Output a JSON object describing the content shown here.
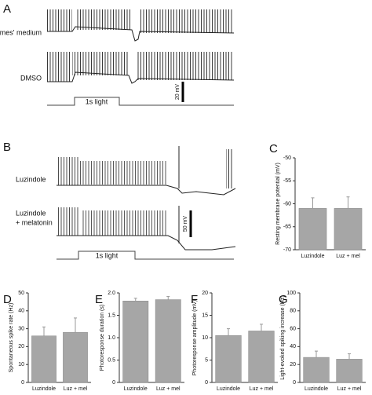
{
  "panel_labels": [
    "A",
    "B",
    "C",
    "D",
    "E",
    "F",
    "G"
  ],
  "traces": {
    "a": {
      "top_label": "Ames' medium",
      "bottom_label": "DMSO",
      "scale": "20 mV",
      "stimulus": "1s light"
    },
    "b": {
      "top_label": "Luzindole",
      "bottom_label": [
        "Luzindole",
        "+ melatonin"
      ],
      "scale": "50 mV",
      "stimulus": "1s light"
    }
  },
  "chart_data": [
    {
      "type": "bar",
      "y_label": "Resting membrane potential (mV)",
      "categories": [
        "Luzindole",
        "Luz + mel"
      ],
      "values": [
        -61,
        -61
      ],
      "errors": [
        2.3,
        2.5
      ],
      "color": "#a6a6a6",
      "ylim": [
        -70,
        -50
      ],
      "yticks": [
        -70,
        -65,
        -60,
        -55,
        -50
      ]
    },
    {
      "type": "bar",
      "y_label": "Spontaneous spike rate (Hz)",
      "categories": [
        "Luzindole",
        "Luz + mel"
      ],
      "values": [
        26,
        28
      ],
      "errors": [
        5,
        8
      ],
      "color": "#a6a6a6",
      "ylim": [
        0,
        50
      ],
      "yticks": [
        0,
        10,
        20,
        30,
        40,
        50
      ]
    },
    {
      "type": "bar",
      "y_label": "Photoresponse duration (s)",
      "categories": [
        "Luzindole",
        "Luz + mel"
      ],
      "values": [
        1.82,
        1.85
      ],
      "errors": [
        0.06,
        0.07
      ],
      "color": "#a6a6a6",
      "ylim": [
        0,
        2
      ],
      "yticks": [
        0,
        0.5,
        {
          "value": 1,
          "label": "1.0"
        },
        1.5,
        {
          "value": 2,
          "label": "2.0"
        }
      ]
    },
    {
      "type": "bar",
      "y_label": "Photoresponse amplitude (mV)",
      "categories": [
        "Luzindole",
        "Luz + mel"
      ],
      "values": [
        10.5,
        11.5
      ],
      "errors": [
        1.5,
        1.5
      ],
      "color": "#a6a6a6",
      "ylim": [
        0,
        20
      ],
      "yticks": [
        0,
        5,
        10,
        15,
        20
      ]
    },
    {
      "type": "bar",
      "y_label": "Light-evoked spiking increase (Hz)",
      "categories": [
        "Luzindole",
        "Luz + mel"
      ],
      "values": [
        28,
        26
      ],
      "errors": [
        7,
        6
      ],
      "color": "#a6a6a6",
      "ylim": [
        0,
        100
      ],
      "yticks": [
        0,
        20,
        40,
        60,
        80,
        100
      ]
    }
  ]
}
